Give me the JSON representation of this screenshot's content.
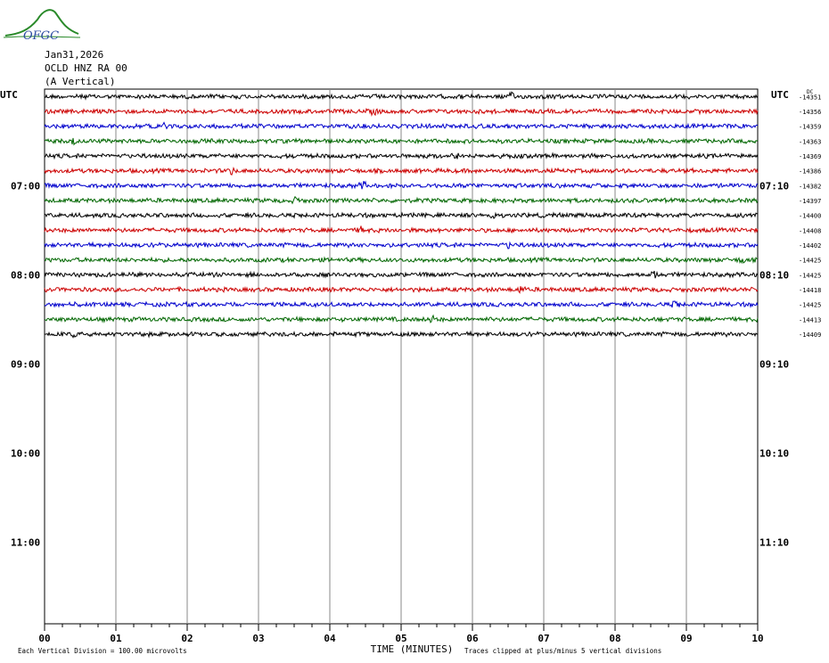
{
  "header": {
    "date": "Jan31,2026",
    "station": "OCLD HNZ RA 00",
    "component": "(A Vertical)"
  },
  "logo": {
    "text": "OFGC",
    "colors": {
      "green": "#2a8a2a",
      "blue": "#2a4aa0"
    }
  },
  "colors": [
    "#000000",
    "#cc0000",
    "#0000cc",
    "#006600"
  ],
  "chart_data": {
    "type": "line",
    "title": "",
    "xlabel": "TIME (MINUTES)",
    "ylabel": "",
    "xlim": [
      0,
      10
    ],
    "x_ticks": [
      "00",
      "01",
      "02",
      "03",
      "04",
      "05",
      "06",
      "07",
      "08",
      "09",
      "10"
    ],
    "grid": true,
    "left_axis_label": "UTC",
    "right_axis_label": "UTC",
    "left_hour_labels": [
      {
        "label": "07:00",
        "row": 6
      },
      {
        "label": "08:00",
        "row": 12
      },
      {
        "label": "09:00",
        "row": 18
      },
      {
        "label": "10:00",
        "row": 24
      },
      {
        "label": "11:00",
        "row": 30
      }
    ],
    "right_hour_labels": [
      {
        "label": "07:10",
        "row": 6
      },
      {
        "label": "08:10",
        "row": 12
      },
      {
        "label": "09:10",
        "row": 18
      },
      {
        "label": "10:10",
        "row": 24
      },
      {
        "label": "11:10",
        "row": 30
      }
    ],
    "total_rows": 36,
    "dc_label": "DC",
    "dc_offsets": [
      -14351,
      -14356,
      -14359,
      -14363,
      -14369,
      -14386,
      -14382,
      -14397,
      -14400,
      -14408,
      -14402,
      -14425,
      -14425,
      -14418,
      -14425,
      -14413,
      -14409
    ],
    "footer_left": "Each Vertical Division =  100.00 microvolts",
    "footer_right": "Traces clipped at plus/minus 5 vertical divisions"
  }
}
